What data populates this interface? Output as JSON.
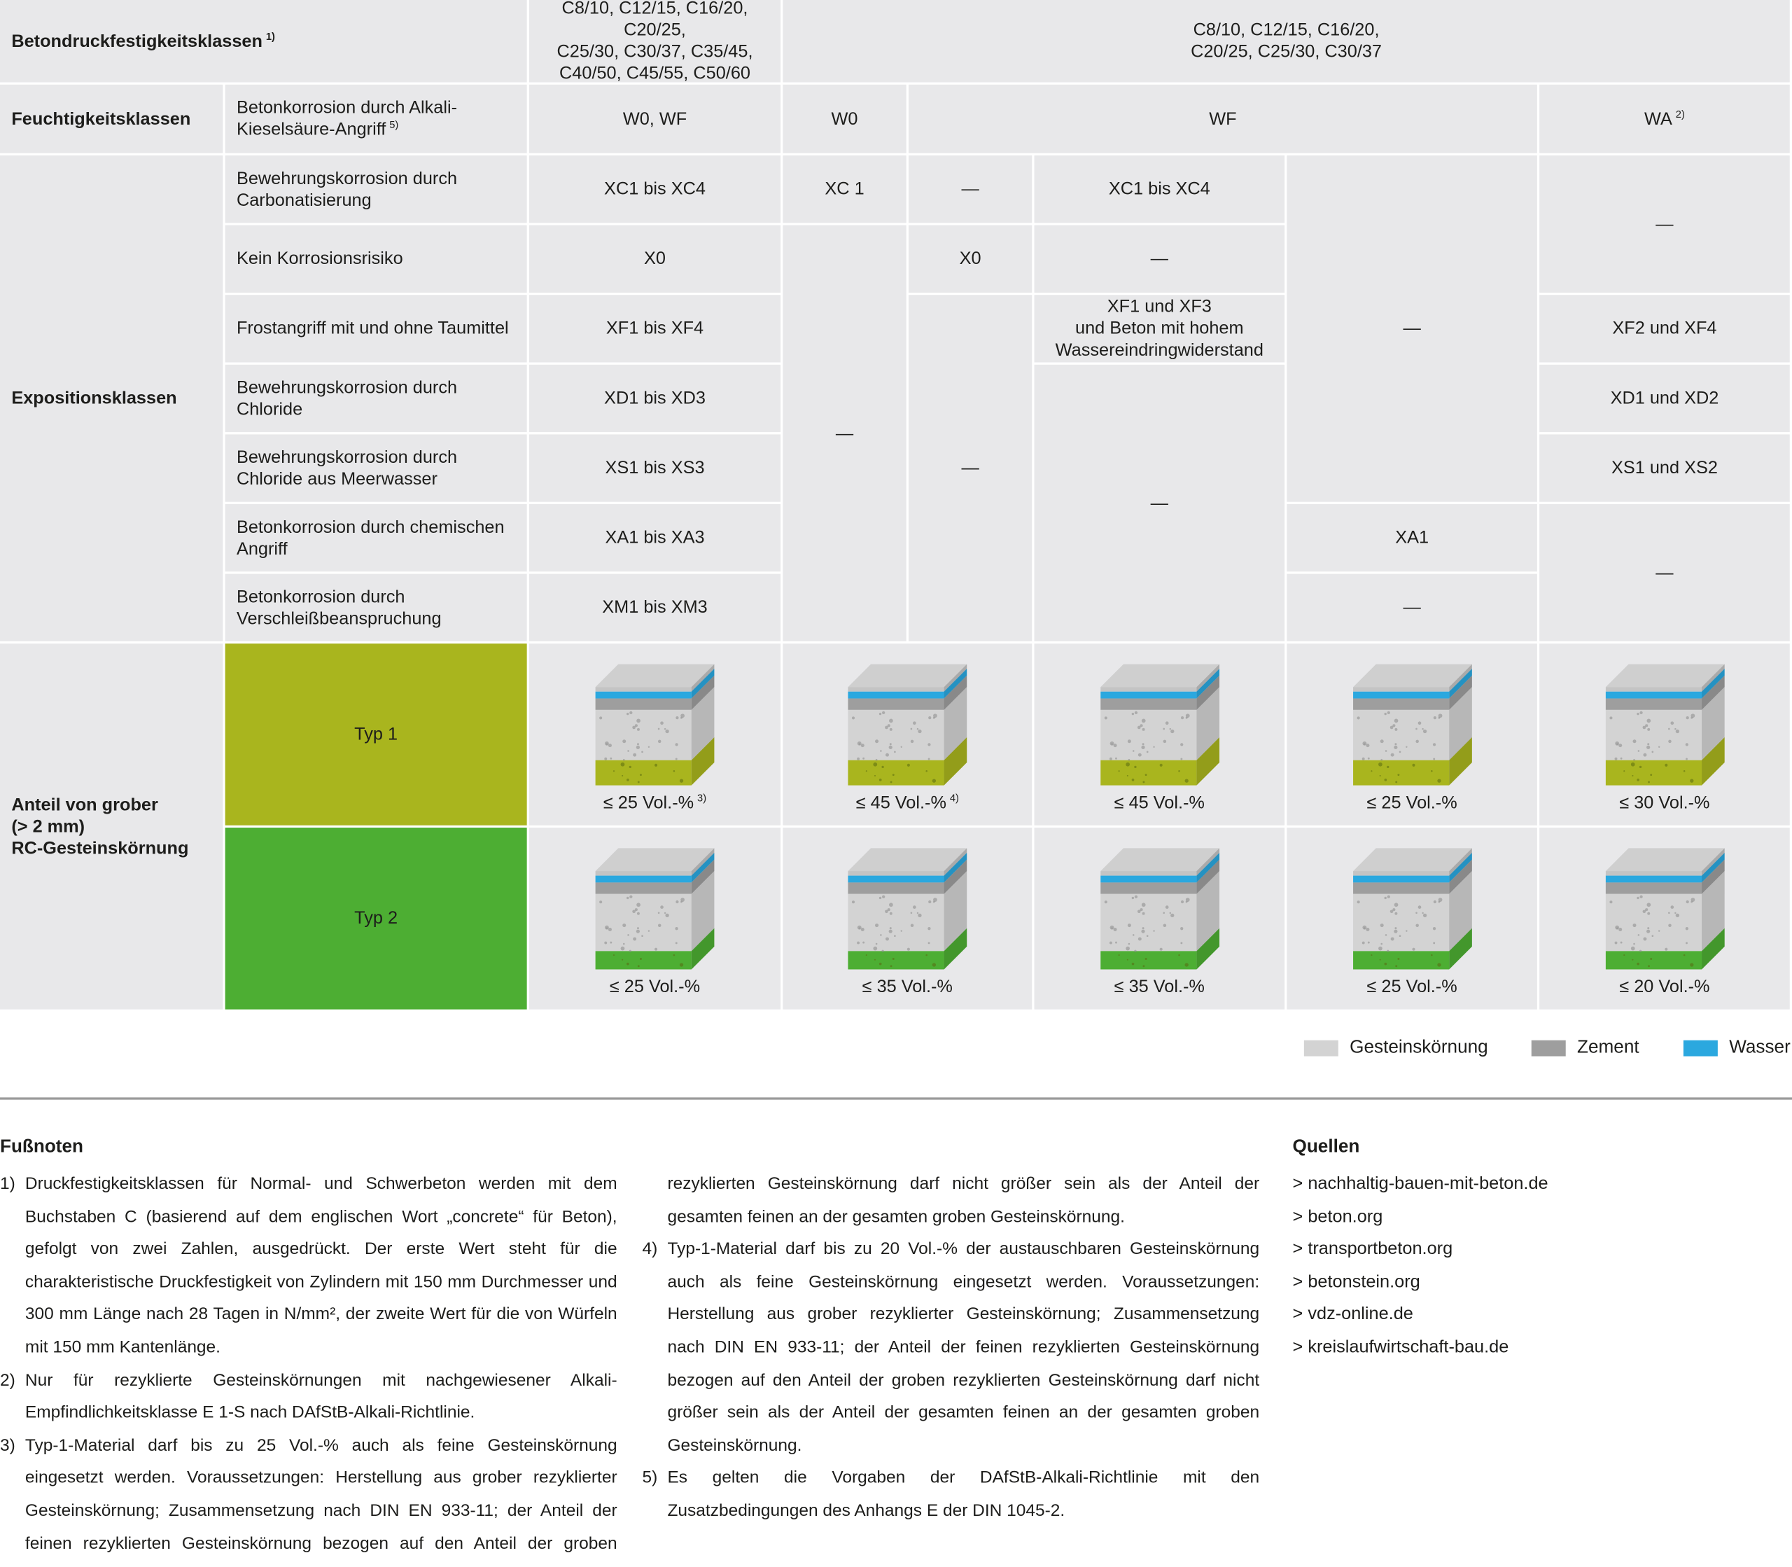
{
  "table": {
    "cells": [
      {
        "text": "Betondruckfestigkeitsklassen",
        "note": "1)"
      },
      {
        "text": "C8/10, C12/15, C16/20, C20/25,\nC25/30, C30/37, C35/45,\nC40/50, C45/55, C50/60"
      },
      {
        "text": "C8/10, C12/15, C16/20,\nC20/25, C25/30, C30/37"
      },
      {
        "text": "Feuchtigkeitsklassen"
      },
      {
        "text": "Betonkorrosion durch Alkali-\nKieselsäure-Angriff",
        "note": "5)"
      },
      {
        "text": "W0, WF"
      },
      {
        "text": "W0"
      },
      {
        "text": "WF"
      },
      {
        "text": "WA",
        "note": "2)"
      },
      {
        "text": "Expositionsklassen"
      },
      {
        "text": "Bewehrungskorrosion durch\nCarbonatisierung"
      },
      {
        "text": "Kein Korrosionsrisiko"
      },
      {
        "text": "Frostangriff mit und ohne Taumittel"
      },
      {
        "text": "Bewehrungskorrosion durch\nChloride"
      },
      {
        "text": "Bewehrungskorrosion durch\nChloride aus Meerwasser"
      },
      {
        "text": "Betonkorrosion durch chemischen\nAngriff"
      },
      {
        "text": "Betonkorrosion durch\nVerschleißbeanspruchung"
      },
      {
        "text": "XC1 bis XC4"
      },
      {
        "text": "X0"
      },
      {
        "text": "XF1 bis XF4"
      },
      {
        "text": "XD1 bis XD3"
      },
      {
        "text": "XS1 bis XS3"
      },
      {
        "text": "XA1 bis XA3"
      },
      {
        "text": "XM1 bis XM3"
      },
      {
        "text": "XC 1"
      },
      {
        "text": "—"
      },
      {
        "text": "—"
      },
      {
        "text": "X0"
      },
      {
        "text": "—"
      },
      {
        "text": "XC1 bis XC4"
      },
      {
        "text": "—"
      },
      {
        "text": "XF1 und XF3\nund Beton mit hohem\nWassereindringwiderstand"
      },
      {
        "text": "—"
      },
      {
        "text": "—"
      },
      {
        "text": "XA1"
      },
      {
        "text": "—"
      },
      {
        "text": "—"
      },
      {
        "text": "XF2 und XF4"
      },
      {
        "text": "XD1 und XD2"
      },
      {
        "text": "XS1 und XS2"
      },
      {
        "text": "—"
      },
      {
        "text": "Anteil von grober\n(> 2 mm)\nRC-Gesteinskörnung"
      },
      {
        "text": "Typ 1",
        "color": "#a9b51e"
      },
      {
        "text": "Typ 2",
        "color": "#4dae33"
      },
      {
        "text": "≤ 25 Vol.-%",
        "note": "3)"
      },
      {
        "text": "≤ 45 Vol.-%",
        "note": "4)"
      },
      {
        "text": "≤ 45 Vol.-%"
      },
      {
        "text": "≤ 25 Vol.-%"
      },
      {
        "text": "≤ 30 Vol.-%"
      },
      {
        "text": "≤ 25 Vol.-%"
      },
      {
        "text": "≤ 35 Vol.-%"
      },
      {
        "text": "≤ 35 Vol.-%"
      },
      {
        "text": "≤ 25 Vol.-%"
      },
      {
        "text": "≤ 20 Vol.-%"
      }
    ]
  },
  "legend": [
    {
      "label": "Gesteinskörnung",
      "color": "#d3d3d3"
    },
    {
      "label": "Zement",
      "color": "#9e9e9e"
    },
    {
      "label": "Wasser",
      "color": "#2ba8df"
    }
  ],
  "footnotes": {
    "title": "Fußnoten",
    "items": [
      {
        "number": "1)",
        "text": "Druckfestigkeitsklassen für Normal- und Schwerbeton werden mit dem Buchstaben C (basierend auf dem englischen Wort „concrete“ für Beton), gefolgt von zwei Zahlen, ausgedrückt. Der erste Wert steht für die charakteristische Druckfestigkeit von Zylindern mit 150 mm Durchmesser und 300 mm Länge nach 28 Tagen in N/mm², der zweite Wert für die von Würfeln mit 150 mm Kantenlänge."
      },
      {
        "number": "2)",
        "text": "Nur für rezyklierte Gesteinskörnungen mit nachgewiesener Alkali-Empfindlichkeitsklasse E 1-S nach DAfStB-Alkali-Richtlinie."
      },
      {
        "number": "3)",
        "text": "Typ-1-Material darf bis zu 25 Vol.-% auch als feine Gesteinskörnung eingesetzt werden. Voraussetzungen: Herstellung aus grober rezyklierter Gesteinskörnung; Zusammensetzung nach DIN EN 933-11; der Anteil der feinen rezyklierten Gesteinskörnung bezogen auf den Anteil der groben rezyklierten Gesteinskörnung darf nicht größer sein als der Anteil der gesamten feinen an der gesamten groben Gesteinskörnung."
      },
      {
        "number": "4)",
        "text": "Typ-1-Material darf bis zu 20 Vol.-% der austauschbaren Gesteinskörnung auch als feine Gesteinskörnung eingesetzt werden. Voraussetzungen: Herstellung aus grober rezyklierter Gesteinskörnung; Zusammensetzung nach DIN EN 933-11; der Anteil der feinen rezyklierten Gesteinskörnung bezogen auf den Anteil der groben rezyklierten Gesteinskörnung darf nicht größer sein als der Anteil der gesamten feinen an der gesamten groben Gesteinskörnung."
      },
      {
        "number": "5)",
        "text": "Es gelten die Vorgaben der DAfStB-Alkali-Richtlinie mit den Zusatzbedingungen des Anhangs E der DIN 1045-2."
      }
    ]
  },
  "sources": {
    "title": "Quellen",
    "items": [
      "> nachhaltig-bauen-mit-beton.de",
      "> beton.org",
      "> transportbeton.org",
      "> betonstein.org",
      "> vdz-online.de",
      "> kreislaufwirtschaft-bau.de"
    ]
  }
}
